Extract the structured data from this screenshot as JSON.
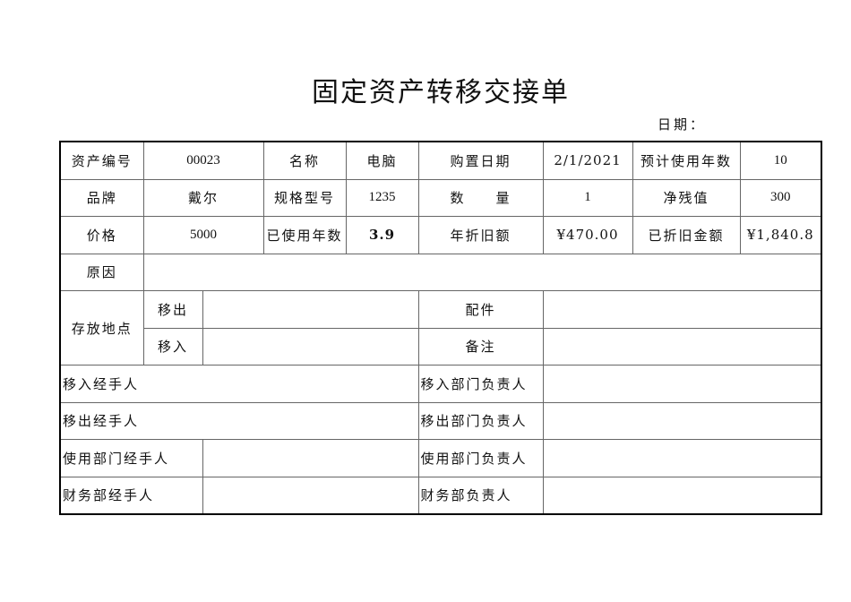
{
  "title": "固定资产转移交接单",
  "date_label": "日期：",
  "rows": {
    "asset_no_label": "资产编号",
    "asset_no": "00023",
    "name_label": "名称",
    "name": "电脑",
    "purchase_date_label": "购置日期",
    "purchase_date": "2/1/2021",
    "expected_years_label": "预计使用年数",
    "expected_years": "10",
    "brand_label": "品牌",
    "brand": "戴尔",
    "model_label": "规格型号",
    "model": "1235",
    "quantity_label": "数　　量",
    "quantity": "1",
    "residual_label": "净残值",
    "residual": "300",
    "price_label": "价格",
    "price": "5000",
    "used_years_label": "已使用年数",
    "used_years": "3.9",
    "annual_dep_label": "年折旧额",
    "annual_dep": "¥470.00",
    "total_dep_label": "已折旧金额",
    "total_dep": "¥1,840.8",
    "reason_label": "原因",
    "location_label": "存放地点",
    "out_label": "移出",
    "in_label": "移入",
    "parts_label": "配件",
    "remark_label": "备注",
    "in_handler": "移入经手人",
    "in_dept_head": "移入部门负责人",
    "out_handler": "移出经手人",
    "out_dept_head": "移出部门负责人",
    "use_handler": "使用部门经手人",
    "use_dept_head": "使用部门负责人",
    "fin_handler": "财务部经手人",
    "fin_head": "财务部负责人"
  }
}
